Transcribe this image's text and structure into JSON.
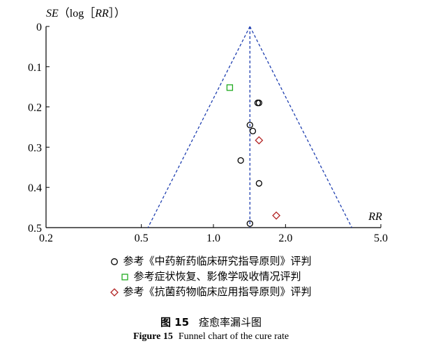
{
  "chart_data": {
    "type": "scatter",
    "title": "",
    "y_axis_label_var": "SE",
    "y_axis_label_func": "log",
    "y_axis_label_arg": "RR",
    "xlabel": "RR",
    "x_scale": "log",
    "xlim": [
      0.2,
      5.0
    ],
    "ylim": [
      0,
      0.5
    ],
    "y_inverted": true,
    "x_ticks": [
      0.2,
      0.5,
      1.0,
      2.0,
      5.0
    ],
    "x_tick_labels": [
      "0.2",
      "0.5",
      "1.0",
      "2.0",
      "5.0"
    ],
    "y_ticks": [
      0,
      0.1,
      0.2,
      0.3,
      0.4,
      0.5
    ],
    "y_tick_labels": [
      "0",
      "0.1",
      "0.2",
      "0.3",
      "0.4",
      "0.5"
    ],
    "pooled_rr": 1.42,
    "legend_placement": "below",
    "series": [
      {
        "name": "参考《中药新药临床研究指导原则》评判",
        "marker": "circle",
        "color": "#000000",
        "points": [
          {
            "x": 1.53,
            "y": 0.19
          },
          {
            "x": 1.55,
            "y": 0.19
          },
          {
            "x": 1.42,
            "y": 0.245
          },
          {
            "x": 1.46,
            "y": 0.26
          },
          {
            "x": 1.3,
            "y": 0.333
          },
          {
            "x": 1.55,
            "y": 0.39
          },
          {
            "x": 1.42,
            "y": 0.49
          }
        ]
      },
      {
        "name": "参考症状恢复、影像学吸收情况评判",
        "marker": "square",
        "color": "#1faa1f",
        "points": [
          {
            "x": 1.17,
            "y": 0.152
          }
        ]
      },
      {
        "name": "参考《抗菌药物临床应用指导原则》评判",
        "marker": "diamond",
        "color": "#b22222",
        "points": [
          {
            "x": 1.55,
            "y": 0.283
          },
          {
            "x": 1.83,
            "y": 0.47
          }
        ]
      }
    ],
    "reference_lines": {
      "style": "dashed",
      "color": "#1f3fb0"
    }
  },
  "caption": {
    "cn_number": "图 15",
    "cn_title": "痊愈率漏斗图",
    "en_number": "Figure 15",
    "en_title": "Funnel chart of the cure rate"
  }
}
